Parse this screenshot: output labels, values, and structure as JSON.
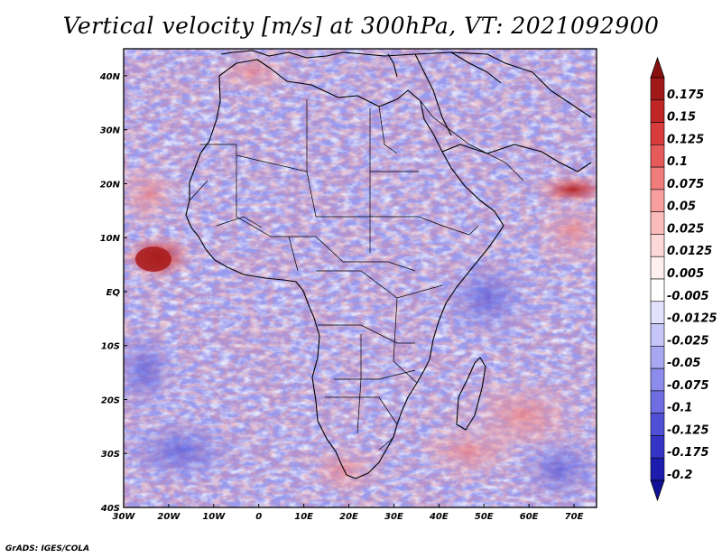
{
  "title": "Vertical velocity [m/s] at 300hPa, VT: 2021092900",
  "credit": "GrADS: IGES/COLA",
  "map": {
    "lon_range": [
      -30,
      75
    ],
    "lat_range": [
      -40,
      45
    ],
    "lon_ticks": [
      {
        "value": -30,
        "label": "30W"
      },
      {
        "value": -20,
        "label": "20W"
      },
      {
        "value": -10,
        "label": "10W"
      },
      {
        "value": 0,
        "label": "0"
      },
      {
        "value": 10,
        "label": "10E"
      },
      {
        "value": 20,
        "label": "20E"
      },
      {
        "value": 30,
        "label": "30E"
      },
      {
        "value": 40,
        "label": "40E"
      },
      {
        "value": 50,
        "label": "50E"
      },
      {
        "value": 60,
        "label": "60E"
      },
      {
        "value": 70,
        "label": "70E"
      }
    ],
    "lat_ticks": [
      {
        "value": 40,
        "label": "40N"
      },
      {
        "value": 30,
        "label": "30N"
      },
      {
        "value": 20,
        "label": "20N"
      },
      {
        "value": 10,
        "label": "10N"
      },
      {
        "value": 0,
        "label": "EQ"
      },
      {
        "value": -10,
        "label": "10S"
      },
      {
        "value": -20,
        "label": "20S"
      },
      {
        "value": -30,
        "label": "30S"
      },
      {
        "value": -40,
        "label": "40S"
      }
    ]
  },
  "colorbar": {
    "levels": [
      {
        "label": "0.175",
        "color": "#a01818"
      },
      {
        "label": "0.15",
        "color": "#c02626"
      },
      {
        "label": "0.125",
        "color": "#d83c3c"
      },
      {
        "label": "0.1",
        "color": "#e65a5a"
      },
      {
        "label": "0.075",
        "color": "#f07c7c"
      },
      {
        "label": "0.05",
        "color": "#f89e9e"
      },
      {
        "label": "0.025",
        "color": "#fcbcbc"
      },
      {
        "label": "0.0125",
        "color": "#fdd8d8"
      },
      {
        "label": "0.005",
        "color": "#fff0f0"
      },
      {
        "label": "-0.005",
        "color": "#ffffff"
      },
      {
        "label": "-0.0125",
        "color": "#e2e2fc"
      },
      {
        "label": "-0.025",
        "color": "#c6c6f8"
      },
      {
        "label": "-0.05",
        "color": "#a8a8f2"
      },
      {
        "label": "-0.075",
        "color": "#8c8cec"
      },
      {
        "label": "-0.1",
        "color": "#6e6ee2"
      },
      {
        "label": "-0.125",
        "color": "#5050d6"
      },
      {
        "label": "-0.175",
        "color": "#3434c6"
      },
      {
        "label": "-0.2",
        "color": "#1c1cae"
      }
    ],
    "over_color": "#8a1010",
    "under_color": "#10109a"
  }
}
